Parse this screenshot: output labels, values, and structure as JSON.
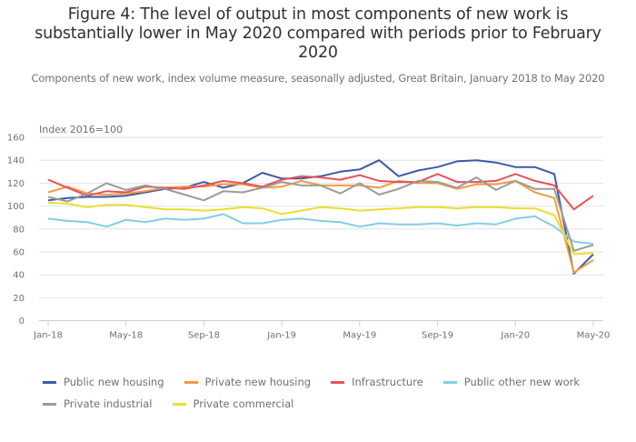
{
  "chart_data": {
    "type": "line",
    "title": "Figure 4: The level of output in most components of new work is substantially lower in May 2020 compared with periods prior to February 2020",
    "subtitle": "Components of new work, index volume measure, seasonally adjusted, Great Britain, January 2018 to May 2020",
    "ylabel": "Index 2016=100",
    "xlabel": "",
    "ylim": [
      0,
      160
    ],
    "yticks": [
      0,
      20,
      40,
      60,
      80,
      100,
      120,
      140,
      160
    ],
    "grid": true,
    "legend_position": "bottom",
    "x": [
      "Jan-18",
      "Feb-18",
      "Mar-18",
      "Apr-18",
      "May-18",
      "Jun-18",
      "Jul-18",
      "Aug-18",
      "Sep-18",
      "Oct-18",
      "Nov-18",
      "Dec-18",
      "Jan-19",
      "Feb-19",
      "Mar-19",
      "Apr-19",
      "May-19",
      "Jun-19",
      "Jul-19",
      "Aug-19",
      "Sep-19",
      "Oct-19",
      "Nov-19",
      "Dec-19",
      "Jan-20",
      "Feb-20",
      "Mar-20",
      "Apr-20",
      "May-20"
    ],
    "xticks": [
      "Jan-18",
      "May-18",
      "Sep-18",
      "Jan-19",
      "May-19",
      "Sep-19",
      "Jan-20",
      "May-20"
    ],
    "series": [
      {
        "name": "Public new housing",
        "color": "#3a5ca8",
        "values": [
          105,
          107,
          108,
          108,
          109,
          112,
          115,
          116,
          121,
          116,
          120,
          129,
          124,
          124,
          126,
          130,
          132,
          140,
          126,
          131,
          134,
          139,
          140,
          138,
          134,
          134,
          128,
          41,
          58
        ]
      },
      {
        "name": "Private new housing",
        "color": "#f59a3d",
        "values": [
          112,
          117,
          111,
          110,
          111,
          113,
          116,
          117,
          117,
          119,
          119,
          116,
          117,
          122,
          118,
          118,
          118,
          116,
          122,
          120,
          120,
          115,
          119,
          119,
          122,
          112,
          107,
          42,
          53
        ]
      },
      {
        "name": "Infrastructure",
        "color": "#e8535a",
        "values": [
          123,
          116,
          109,
          113,
          112,
          117,
          116,
          115,
          118,
          122,
          120,
          117,
          123,
          126,
          125,
          123,
          127,
          122,
          121,
          121,
          128,
          121,
          121,
          122,
          128,
          122,
          118,
          97,
          109
        ]
      },
      {
        "name": "Public other new work",
        "color": "#82cde6",
        "values": [
          89,
          87,
          86,
          82,
          88,
          86,
          89,
          88,
          89,
          93,
          85,
          85,
          88,
          89,
          87,
          86,
          82,
          85,
          84,
          84,
          85,
          83,
          85,
          84,
          89,
          91,
          82,
          69,
          67
        ]
      },
      {
        "name": "Private industrial",
        "color": "#9b9b9b",
        "values": [
          108,
          104,
          111,
          120,
          114,
          118,
          115,
          110,
          105,
          113,
          112,
          116,
          121,
          118,
          118,
          111,
          120,
          110,
          115,
          122,
          121,
          116,
          125,
          114,
          122,
          115,
          115,
          61,
          66
        ]
      },
      {
        "name": "Private commercial",
        "color": "#e9df2e",
        "values": [
          103,
          102,
          99,
          101,
          101,
          99,
          97,
          97,
          96,
          97,
          99,
          98,
          93,
          96,
          99,
          98,
          96,
          97,
          98,
          99,
          99,
          98,
          99,
          99,
          98,
          98,
          92,
          58,
          59
        ]
      }
    ]
  }
}
